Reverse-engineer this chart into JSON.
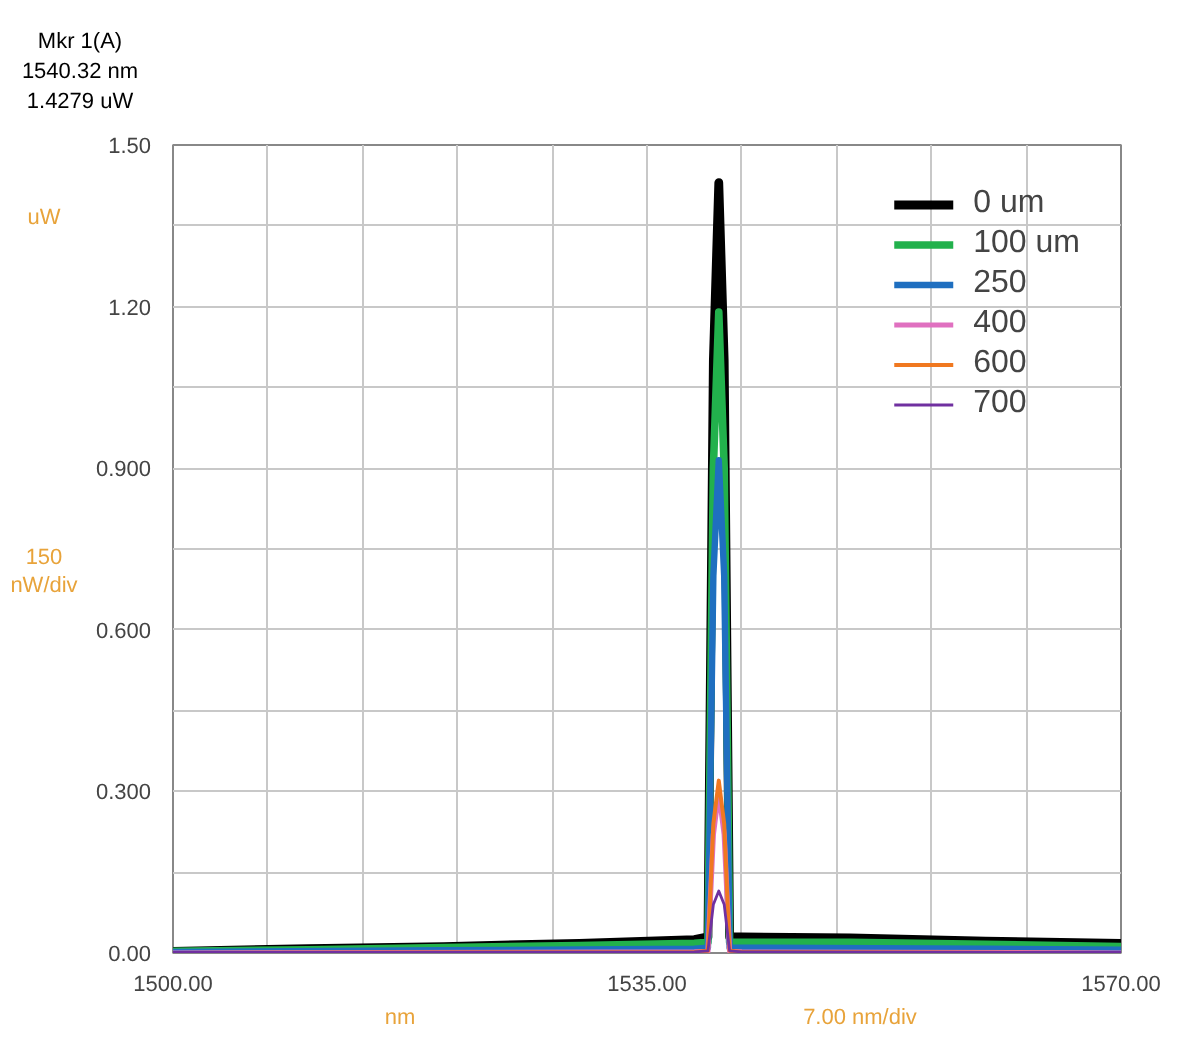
{
  "chart_data": {
    "type": "line",
    "xlabel": "nm",
    "ylabel": "uW",
    "annotations": [
      "Mkr 1(A)",
      "1540.32 nm",
      "1.4279 uW",
      "150 nW/div",
      "7.00 nm/div"
    ],
    "xlim": [
      1500,
      1570
    ],
    "ylim": [
      0,
      1.5
    ],
    "xticks": [
      {
        "value": 1500,
        "label": "1500.00"
      },
      {
        "value": 1507,
        "label": null
      },
      {
        "value": 1514,
        "label": null
      },
      {
        "value": 1521,
        "label": null
      },
      {
        "value": 1528,
        "label": null
      },
      {
        "value": 1535,
        "label": "1535.00"
      },
      {
        "value": 1542,
        "label": null
      },
      {
        "value": 1549,
        "label": null
      },
      {
        "value": 1556,
        "label": null
      },
      {
        "value": 1563,
        "label": null
      },
      {
        "value": 1570,
        "label": "1570.00"
      }
    ],
    "yticks": [
      {
        "value": 0,
        "label": "0.00"
      },
      {
        "value": 0.15,
        "label": null
      },
      {
        "value": 0.3,
        "label": "0.300"
      },
      {
        "value": 0.45,
        "label": null
      },
      {
        "value": 0.6,
        "label": "0.600"
      },
      {
        "value": 0.75,
        "label": null
      },
      {
        "value": 0.9,
        "label": "0.900"
      },
      {
        "value": 1.05,
        "label": null
      },
      {
        "value": 1.2,
        "label": "1.20"
      },
      {
        "value": 1.35,
        "label": null
      },
      {
        "value": 1.5,
        "label": "1.50"
      }
    ],
    "grid": true,
    "legend": "top right",
    "line_style": "solid",
    "marker": "none",
    "series": [
      {
        "name": "0 um",
        "color": "#000000",
        "x": [
          1500,
          1510,
          1520,
          1530,
          1538.5,
          1539.5,
          1539.9,
          1540.3,
          1540.7,
          1541.1,
          1542,
          1550,
          1560,
          1570
        ],
        "values": [
          0.003,
          0.008,
          0.012,
          0.018,
          0.025,
          0.03,
          1.1,
          1.43,
          1.1,
          0.03,
          0.03,
          0.028,
          0.022,
          0.018
        ]
      },
      {
        "name": "100 um",
        "color": "#22b14c",
        "x": [
          1500,
          1510,
          1520,
          1530,
          1538.5,
          1539.5,
          1539.9,
          1540.3,
          1540.7,
          1541.1,
          1542,
          1550,
          1560,
          1570
        ],
        "values": [
          0.003,
          0.006,
          0.01,
          0.014,
          0.018,
          0.02,
          0.9,
          1.19,
          0.9,
          0.02,
          0.02,
          0.02,
          0.016,
          0.012
        ]
      },
      {
        "name": "250",
        "color": "#1f6fc0",
        "x": [
          1500,
          1520,
          1538.5,
          1539.5,
          1539.9,
          1540.3,
          1540.7,
          1541.1,
          1542,
          1560,
          1570
        ],
        "values": [
          0.002,
          0.005,
          0.008,
          0.01,
          0.7,
          0.915,
          0.7,
          0.01,
          0.01,
          0.008,
          0.006
        ]
      },
      {
        "name": "400",
        "color": "#e070c0",
        "x": [
          1500,
          1538.5,
          1539.5,
          1539.9,
          1540.3,
          1540.7,
          1541.1,
          1542,
          1570
        ],
        "values": [
          0.0,
          0.002,
          0.003,
          0.22,
          0.3,
          0.22,
          0.003,
          0.002,
          0.0
        ]
      },
      {
        "name": "600",
        "color": "#f07820",
        "x": [
          1500,
          1538.5,
          1539.5,
          1539.9,
          1540.3,
          1540.7,
          1541.1,
          1542,
          1570
        ],
        "values": [
          0.0,
          0.002,
          0.004,
          0.24,
          0.32,
          0.24,
          0.004,
          0.002,
          0.0
        ]
      },
      {
        "name": "700",
        "color": "#7030a0",
        "x": [
          1500,
          1538.5,
          1539.5,
          1539.9,
          1540.3,
          1540.7,
          1541.1,
          1542,
          1570
        ],
        "values": [
          0.001,
          0.002,
          0.004,
          0.09,
          0.115,
          0.09,
          0.004,
          0.002,
          0.001
        ]
      }
    ]
  }
}
